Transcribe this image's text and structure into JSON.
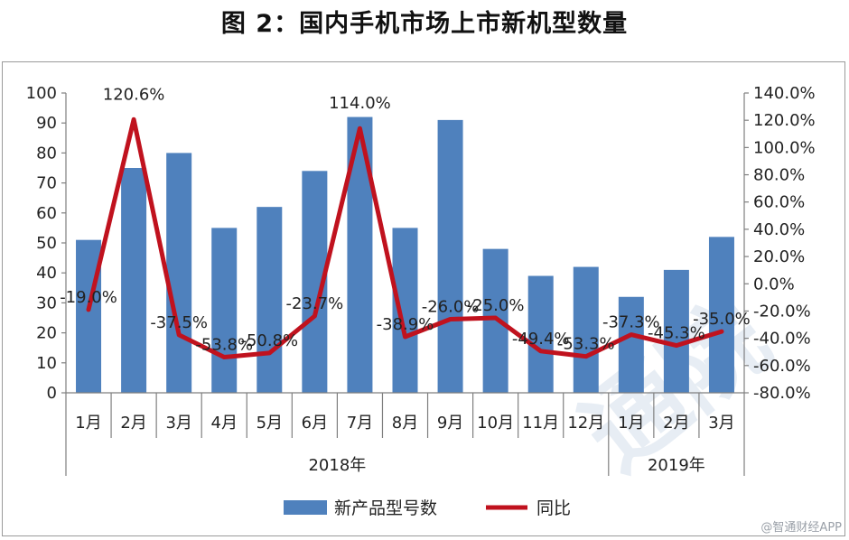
{
  "title": "图 2：国内手机市场上市新机型数量",
  "watermark": "通院",
  "credit": "@智通财经APP",
  "chart_data": {
    "type": "bar+line",
    "categories": [
      "1月",
      "2月",
      "3月",
      "4月",
      "5月",
      "6月",
      "7月",
      "8月",
      "9月",
      "10月",
      "11月",
      "12月",
      "1月",
      "2月",
      "3月"
    ],
    "groups": [
      {
        "label": "2018年",
        "count": 12
      },
      {
        "label": "2019年",
        "count": 3
      }
    ],
    "series": [
      {
        "name": "新产品型号数",
        "type": "bar",
        "axis": "left",
        "color": "#4F81BD",
        "values": [
          51,
          75,
          80,
          55,
          62,
          74,
          92,
          55,
          91,
          48,
          39,
          42,
          32,
          41,
          52
        ]
      },
      {
        "name": "同比",
        "type": "line",
        "axis": "right",
        "color": "#C0121E",
        "values": [
          -19.0,
          120.6,
          -37.5,
          -53.8,
          -50.8,
          -23.7,
          114.0,
          -38.9,
          -26.0,
          -25.0,
          -49.4,
          -53.3,
          -37.3,
          -45.3,
          -35.0
        ],
        "labels": [
          "-19.0%",
          "120.6%",
          "-37.5%",
          "-53.8%",
          "-50.8%",
          "-23.7%",
          "114.0%",
          "-38.9%",
          "-26.0%",
          "-25.0%",
          "-49.4%",
          "-53.3%",
          "-37.3%",
          "-45.3%",
          "-35.0%"
        ]
      }
    ],
    "y_left": {
      "min": 0,
      "max": 100,
      "ticks": [
        "0",
        "10",
        "20",
        "30",
        "40",
        "50",
        "60",
        "70",
        "80",
        "90",
        "100"
      ]
    },
    "y_right": {
      "min": -80,
      "max": 140,
      "ticks": [
        "-80.0%",
        "-60.0%",
        "-40.0%",
        "-20.0%",
        "0.0%",
        "20.0%",
        "40.0%",
        "60.0%",
        "80.0%",
        "100.0%",
        "120.0%",
        "140.0%"
      ]
    },
    "legend": {
      "position": "bottom",
      "items": [
        "新产品型号数",
        "同比"
      ]
    },
    "grid": false
  }
}
